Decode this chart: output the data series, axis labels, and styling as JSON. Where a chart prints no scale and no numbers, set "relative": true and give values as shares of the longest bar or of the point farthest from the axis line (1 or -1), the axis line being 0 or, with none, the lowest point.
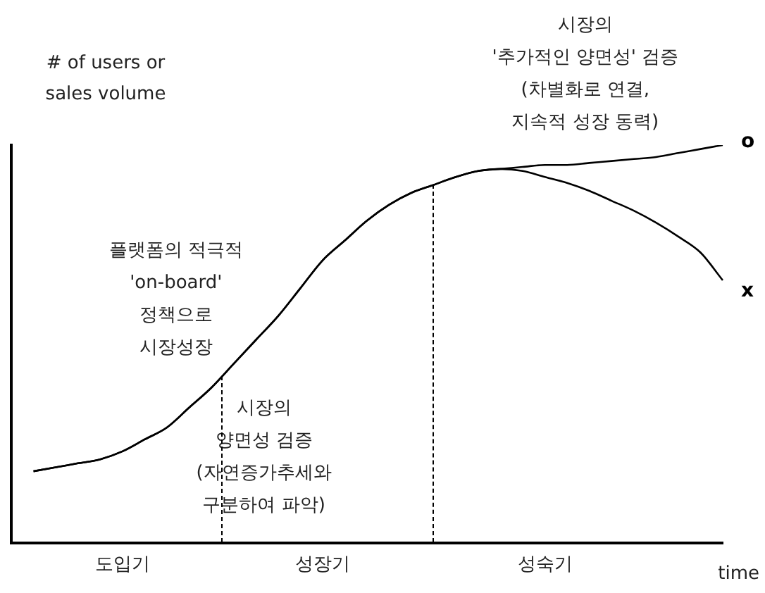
{
  "chart_data": {
    "type": "line",
    "relative": true,
    "ylabel": "# of users or\nsales volume",
    "xlabel": "time",
    "categories": [
      null,
      null,
      null,
      null,
      null,
      "도입기",
      null,
      null,
      null,
      null,
      null,
      null,
      null,
      null,
      "성장기",
      null,
      null,
      null,
      null,
      null,
      null,
      null,
      null,
      null,
      "성숙기",
      null,
      null,
      null,
      null,
      null,
      null,
      null,
      null
    ],
    "series": [
      {
        "name": "o",
        "color": "#000000",
        "values": [
          null,
          0.18,
          0.19,
          0.2,
          0.21,
          0.23,
          0.26,
          0.29,
          0.34,
          0.39,
          0.45,
          0.51,
          0.57,
          0.64,
          0.71,
          0.76,
          0.81,
          0.85,
          0.88,
          0.9,
          0.92,
          0.935,
          0.94,
          0.945,
          0.95,
          0.95,
          0.955,
          0.96,
          0.965,
          0.97,
          0.98,
          0.99,
          1
        ]
      },
      {
        "name": "x",
        "color": "#000000",
        "values": [
          null,
          0.18,
          0.19,
          0.2,
          0.21,
          0.23,
          0.26,
          0.29,
          0.34,
          0.39,
          0.45,
          0.51,
          0.57,
          0.64,
          0.71,
          0.76,
          0.81,
          0.85,
          0.88,
          0.9,
          0.92,
          0.935,
          0.94,
          0.935,
          0.92,
          0.905,
          0.885,
          0.86,
          0.835,
          0.805,
          0.77,
          0.73,
          0.66
        ]
      }
    ],
    "annotations": [
      "플랫폼의 적극적\n'on-board'\n정책으로\n시장성장",
      "시장의\n양면성 검증\n(자연증가추세와\n구분하여 파악)",
      "시장의\n'추가적인 양면성' 검증\n(차별화로 연결,\n지속적 성장 동력)"
    ],
    "legend": false,
    "marker": "none",
    "line_style": "solid"
  }
}
